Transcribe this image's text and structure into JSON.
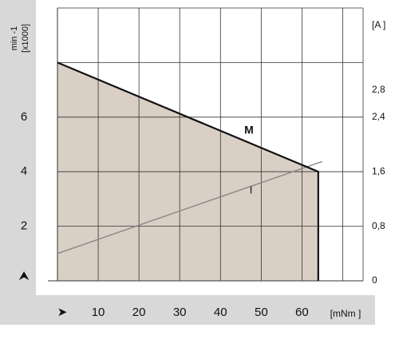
{
  "colors": {
    "panel": "#d8d8d8",
    "grid": "#333333",
    "fill": "#d9cfc4",
    "curve_m": "#111111",
    "curve_i": "#888888",
    "text": "#111111"
  },
  "chart_data": {
    "type": "line",
    "x_axis": {
      "min": 0,
      "max": 75,
      "ticks": [
        10,
        20,
        30,
        40,
        50,
        60
      ],
      "tick_labels": [
        "10",
        "20",
        "30",
        "40",
        "50",
        "60"
      ],
      "label": "[mNm ]",
      "arrow": "➤"
    },
    "y_left": {
      "min": 0,
      "max": 10,
      "ticks": [
        2,
        4,
        6
      ],
      "tick_labels": [
        "2",
        "4",
        "6"
      ],
      "label_line1": "min -1",
      "label_line2": "[x1000]",
      "arrow": "⮝"
    },
    "y_right": {
      "min": 0,
      "max": 4,
      "ticks": [
        0,
        0.8,
        1.6,
        2.4,
        2.8
      ],
      "tick_labels": [
        "0",
        "0,8",
        "1,6",
        "2,4",
        "2,8"
      ],
      "label": "[A ]"
    },
    "grid": true,
    "series": [
      {
        "name": "M",
        "axis": "left",
        "points": [
          [
            0,
            8
          ],
          [
            64,
            4
          ],
          [
            64,
            0
          ]
        ],
        "fill_to_zero": true
      },
      {
        "name": "I",
        "axis": "right",
        "points": [
          [
            0,
            0.4
          ],
          [
            65,
            1.75
          ]
        ]
      }
    ]
  }
}
